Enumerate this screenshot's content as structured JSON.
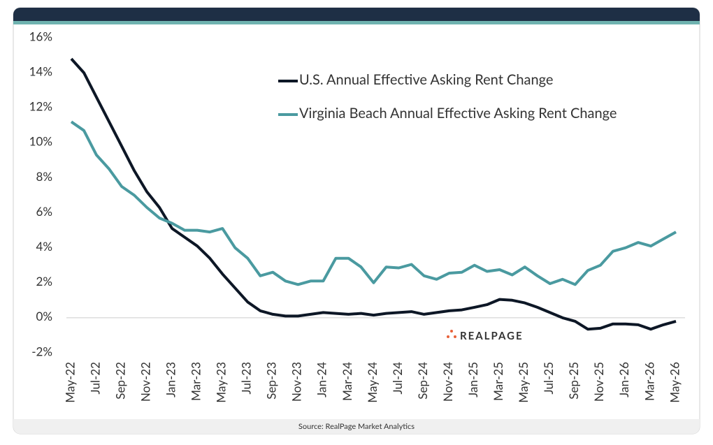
{
  "chart_data": {
    "type": "line",
    "categories": [
      "May-22",
      null,
      "Jul-22",
      null,
      "Sep-22",
      null,
      "Nov-22",
      null,
      "Jan-23",
      null,
      "Mar-23",
      null,
      "May-23",
      null,
      "Jul-23",
      null,
      "Sep-23",
      null,
      "Nov-23",
      null,
      "Jan-24",
      null,
      "Mar-24",
      null,
      "May-24",
      null,
      "Jul-24",
      null,
      "Sep-24",
      null,
      "Nov-24",
      null,
      "Jan-25",
      null,
      "Mar-25",
      null,
      "May-25",
      null,
      "Jul-25",
      null,
      "Sep-25",
      null,
      "Nov-25",
      null,
      "Jan-26",
      null,
      "Mar-26",
      null,
      "May-26"
    ],
    "series": [
      {
        "name": "U.S. Annual Effective Asking Rent Change",
        "color": "#0d1726",
        "values": [
          14.8,
          14.0,
          12.6,
          11.2,
          9.8,
          8.4,
          7.2,
          6.3,
          5.1,
          4.6,
          4.1,
          3.4,
          2.5,
          1.7,
          0.9,
          0.4,
          0.2,
          0.1,
          0.1,
          0.2,
          0.3,
          0.25,
          0.2,
          0.25,
          0.15,
          0.25,
          0.3,
          0.35,
          0.2,
          0.3,
          0.4,
          0.45,
          0.6,
          0.75,
          1.05,
          1.0,
          0.85,
          0.6,
          0.3,
          0.0,
          -0.2,
          -0.65,
          -0.6,
          -0.35,
          -0.35,
          -0.4,
          -0.65,
          -0.4,
          -0.2
        ]
      },
      {
        "name": "Virginia Beach Annual Effective Asking Rent Change",
        "color": "#4a9aa0",
        "values": [
          11.2,
          10.7,
          9.3,
          8.5,
          7.5,
          7.0,
          6.3,
          5.7,
          5.4,
          5.0,
          5.0,
          4.9,
          5.1,
          4.0,
          3.4,
          2.4,
          2.6,
          2.1,
          1.9,
          2.1,
          2.1,
          3.4,
          3.4,
          2.9,
          2.0,
          2.9,
          2.85,
          3.05,
          2.4,
          2.2,
          2.55,
          2.6,
          3.0,
          2.65,
          2.75,
          2.45,
          2.9,
          2.4,
          1.95,
          2.2,
          1.9,
          2.7,
          3.0,
          3.8,
          4.0,
          4.3,
          4.1,
          4.5,
          4.9
        ]
      }
    ],
    "ylim": [
      -2,
      16
    ],
    "yticks": [
      {
        "value": -2,
        "label": "-2%"
      },
      {
        "value": 0,
        "label": "0%"
      },
      {
        "value": 2,
        "label": "2%"
      },
      {
        "value": 4,
        "label": "4%"
      },
      {
        "value": 6,
        "label": "6%"
      },
      {
        "value": 8,
        "label": "8%"
      },
      {
        "value": 10,
        "label": "10%"
      },
      {
        "value": 12,
        "label": "12%"
      },
      {
        "value": 14,
        "label": "14%"
      },
      {
        "value": 16,
        "label": "16%"
      }
    ],
    "zero_line": true,
    "brand": "REALPAGE",
    "source": "Source: RealPage Market Analytics"
  }
}
